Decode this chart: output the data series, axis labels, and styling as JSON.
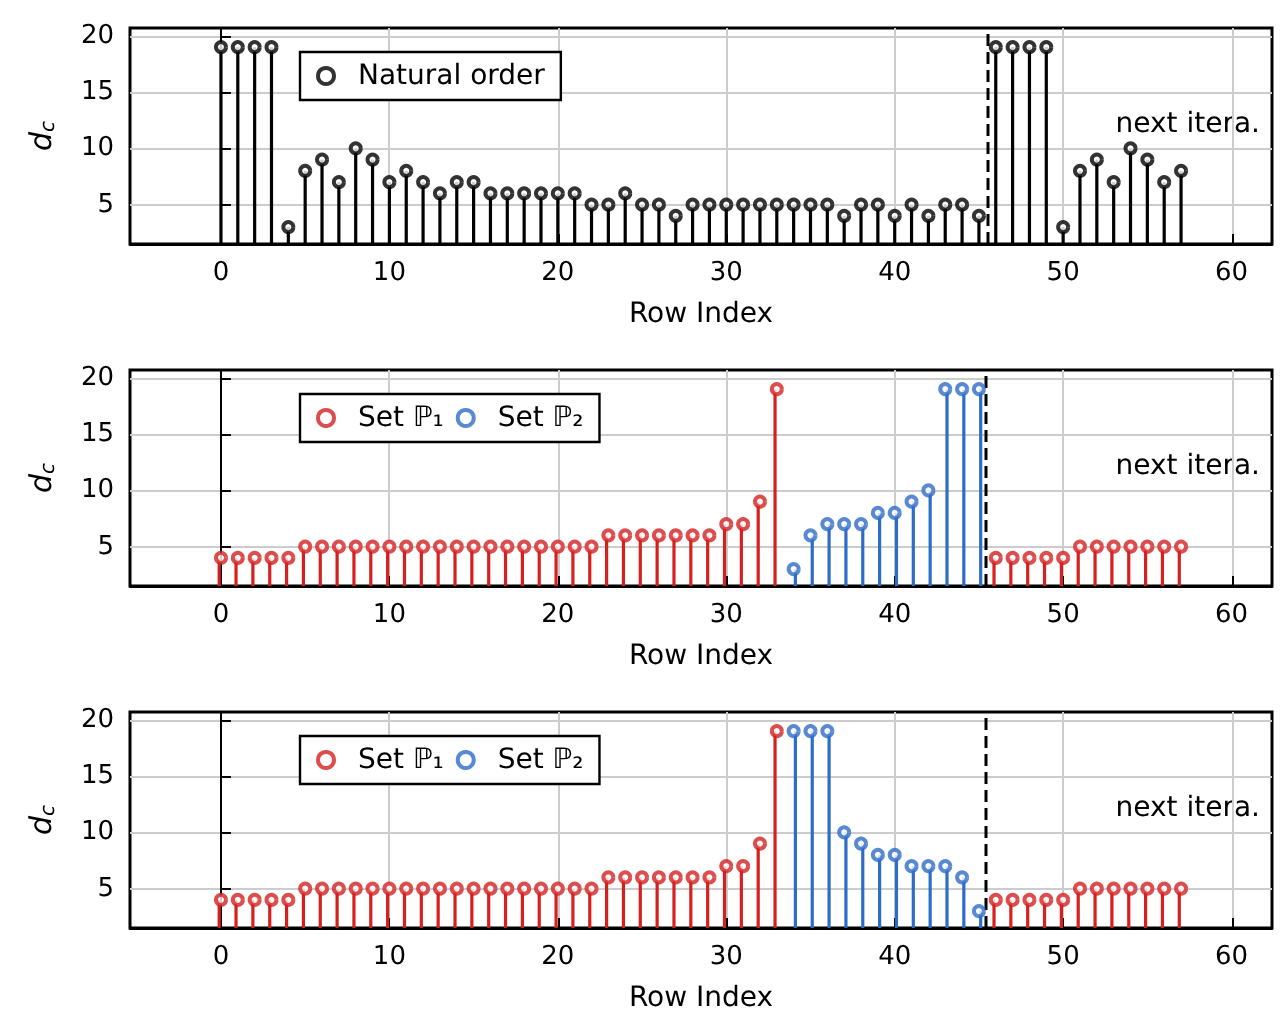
{
  "chart_data": [
    {
      "type": "lollipop",
      "xlabel": "Row Index",
      "ylabel": "d$_{c}$",
      "xlim": [
        -5.4,
        62.4
      ],
      "xticks": [
        0,
        10,
        20,
        30,
        40,
        50,
        60
      ],
      "ylim": [
        1.5,
        20.7
      ],
      "yticks": [
        5,
        10,
        15,
        20
      ],
      "grid": true,
      "legend": "top left",
      "marker": "circle",
      "x": [
        0,
        1,
        2,
        3,
        4,
        5,
        6,
        7,
        8,
        9,
        10,
        11,
        12,
        13,
        14,
        15,
        16,
        17,
        18,
        19,
        20,
        21,
        22,
        23,
        24,
        25,
        26,
        27,
        28,
        29,
        30,
        31,
        32,
        33,
        34,
        35,
        36,
        37,
        38,
        39,
        40,
        41,
        42,
        43,
        44,
        45,
        46,
        47,
        48,
        49,
        50,
        51,
        52,
        53,
        54,
        55,
        56,
        57
      ],
      "series": [
        {
          "name": "Natural order",
          "color": "#000000",
          "values": [
            19,
            19,
            19,
            19,
            3,
            8,
            9,
            7,
            10,
            9,
            7,
            8,
            7,
            6,
            7,
            7,
            6,
            6,
            6,
            6,
            6,
            6,
            5,
            5,
            6,
            5,
            5,
            4,
            5,
            5,
            5,
            5,
            5,
            5,
            5,
            5,
            5,
            4,
            5,
            5,
            4,
            5,
            4,
            5,
            5,
            4,
            19,
            19,
            19,
            19,
            3,
            8,
            9,
            7,
            10,
            9,
            7,
            8
          ]
        }
      ],
      "ref_lines": [
        {
          "axis": "x",
          "value": 45.5,
          "color": "#000000",
          "line_style": "dashed"
        }
      ],
      "annotations": [
        "next itera."
      ]
    },
    {
      "type": "lollipop",
      "xlabel": "Row Index",
      "ylabel": "d$_{c}$",
      "xlim": [
        -5.4,
        62.4
      ],
      "xticks": [
        0,
        10,
        20,
        30,
        40,
        50,
        60
      ],
      "ylim": [
        1.5,
        20.7
      ],
      "yticks": [
        5,
        10,
        15,
        20
      ],
      "grid": true,
      "legend": "top left",
      "marker": "circle",
      "x": [
        0,
        1,
        2,
        3,
        4,
        5,
        6,
        7,
        8,
        9,
        10,
        11,
        12,
        13,
        14,
        15,
        16,
        17,
        18,
        19,
        20,
        21,
        22,
        23,
        24,
        25,
        26,
        27,
        28,
        29,
        30,
        31,
        32,
        33,
        34,
        35,
        36,
        37,
        38,
        39,
        40,
        41,
        42,
        43,
        44,
        45,
        46,
        47,
        48,
        49,
        50,
        51,
        52,
        53,
        54,
        55,
        56,
        57
      ],
      "series": [
        {
          "name": "Set ℙ₁",
          "color": "#d62020",
          "values": [
            4,
            4,
            4,
            4,
            4,
            5,
            5,
            5,
            5,
            5,
            5,
            5,
            5,
            5,
            5,
            5,
            5,
            5,
            5,
            5,
            5,
            5,
            5,
            6,
            6,
            6,
            6,
            6,
            6,
            6,
            7,
            7,
            9,
            19,
            null,
            null,
            null,
            null,
            null,
            null,
            null,
            null,
            null,
            null,
            null,
            null,
            4,
            4,
            4,
            4,
            4,
            5,
            5,
            5,
            5,
            5,
            5,
            5
          ]
        },
        {
          "name": "Set ℙ₂",
          "color": "#2f6cc8",
          "values": [
            null,
            null,
            null,
            null,
            null,
            null,
            null,
            null,
            null,
            null,
            null,
            null,
            null,
            null,
            null,
            null,
            null,
            null,
            null,
            null,
            null,
            null,
            null,
            null,
            null,
            null,
            null,
            null,
            null,
            null,
            null,
            null,
            null,
            null,
            3,
            6,
            7,
            7,
            7,
            8,
            8,
            9,
            10,
            19,
            19,
            19,
            null,
            null,
            null,
            null,
            null,
            null,
            null,
            null,
            null,
            null,
            null,
            null
          ]
        }
      ],
      "ref_lines": [
        {
          "axis": "x",
          "value": 45.5,
          "color": "#000000",
          "line_style": "dashed"
        }
      ],
      "annotations": [
        "next itera."
      ]
    },
    {
      "type": "lollipop",
      "xlabel": "Row Index",
      "ylabel": "d$_{c}$",
      "xlim": [
        -5.4,
        62.4
      ],
      "xticks": [
        0,
        10,
        20,
        30,
        40,
        50,
        60
      ],
      "ylim": [
        1.5,
        20.7
      ],
      "yticks": [
        5,
        10,
        15,
        20
      ],
      "grid": true,
      "legend": "top left",
      "marker": "circle",
      "x": [
        0,
        1,
        2,
        3,
        4,
        5,
        6,
        7,
        8,
        9,
        10,
        11,
        12,
        13,
        14,
        15,
        16,
        17,
        18,
        19,
        20,
        21,
        22,
        23,
        24,
        25,
        26,
        27,
        28,
        29,
        30,
        31,
        32,
        33,
        34,
        35,
        36,
        37,
        38,
        39,
        40,
        41,
        42,
        43,
        44,
        45,
        46,
        47,
        48,
        49,
        50,
        51,
        52,
        53,
        54,
        55,
        56,
        57
      ],
      "series": [
        {
          "name": "Set ℙ₁",
          "color": "#d62020",
          "values": [
            4,
            4,
            4,
            4,
            4,
            5,
            5,
            5,
            5,
            5,
            5,
            5,
            5,
            5,
            5,
            5,
            5,
            5,
            5,
            5,
            5,
            5,
            5,
            6,
            6,
            6,
            6,
            6,
            6,
            6,
            7,
            7,
            9,
            19,
            null,
            null,
            null,
            null,
            null,
            null,
            null,
            null,
            null,
            null,
            null,
            null,
            4,
            4,
            4,
            4,
            4,
            5,
            5,
            5,
            5,
            5,
            5,
            5
          ]
        },
        {
          "name": "Set ℙ₂",
          "color": "#2f6cc8",
          "values": [
            null,
            null,
            null,
            null,
            null,
            null,
            null,
            null,
            null,
            null,
            null,
            null,
            null,
            null,
            null,
            null,
            null,
            null,
            null,
            null,
            null,
            null,
            null,
            null,
            null,
            null,
            null,
            null,
            null,
            null,
            null,
            null,
            null,
            null,
            19,
            19,
            19,
            10,
            9,
            8,
            8,
            7,
            7,
            7,
            6,
            3,
            null,
            null,
            null,
            null,
            null,
            null,
            null,
            null,
            null,
            null,
            null,
            null
          ]
        }
      ],
      "ref_lines": [
        {
          "axis": "x",
          "value": 45.5,
          "color": "#000000",
          "line_style": "dashed"
        }
      ],
      "annotations": [
        "next itera."
      ]
    }
  ]
}
